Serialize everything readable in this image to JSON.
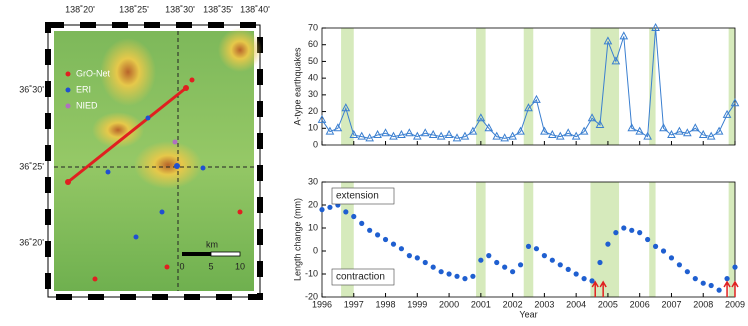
{
  "map": {
    "lon_labels": [
      "138˚20'",
      "138˚25'",
      "138˚30'",
      "138˚35'",
      "138˚40'"
    ],
    "lat_labels": [
      "36˚30'",
      "36˚25'",
      "36˚20'"
    ],
    "legend": [
      "GrO-Net",
      "ERI",
      "NIED"
    ],
    "scale_unit": "km",
    "scale_labels": [
      "0",
      "5",
      "10"
    ]
  },
  "chart_data": [
    {
      "type": "line",
      "ylabel": "A-type earthquakes",
      "color": "#3a7fd0",
      "band_color": "#cfe6b0",
      "shaded_periods": [
        [
          1996.6,
          1997.0
        ],
        [
          2000.85,
          2001.15
        ],
        [
          2002.35,
          2002.65
        ],
        [
          2004.45,
          2005.35
        ],
        [
          2006.3,
          2006.5
        ],
        [
          2008.8,
          2009.0
        ]
      ],
      "xlim": [
        1996,
        2009
      ],
      "xticks": [
        1996,
        1997,
        1998,
        1999,
        2000,
        2001,
        2002,
        2003,
        2004,
        2005,
        2006,
        2007,
        2008,
        2009
      ],
      "xtick_labels": false,
      "ylim": [
        0,
        70
      ],
      "yticks": [
        0,
        10,
        20,
        30,
        40,
        50,
        60,
        70
      ],
      "x": [
        1996,
        1996.25,
        1996.5,
        1996.75,
        1997,
        1997.25,
        1997.5,
        1997.75,
        1998,
        1998.25,
        1998.5,
        1998.75,
        1999,
        1999.25,
        1999.5,
        1999.75,
        2000,
        2000.25,
        2000.5,
        2000.75,
        2001,
        2001.25,
        2001.5,
        2001.75,
        2002,
        2002.25,
        2002.5,
        2002.75,
        2003,
        2003.25,
        2003.5,
        2003.75,
        2004,
        2004.25,
        2004.5,
        2004.75,
        2005,
        2005.25,
        2005.5,
        2005.75,
        2006,
        2006.25,
        2006.5,
        2006.75,
        2007,
        2007.25,
        2007.5,
        2007.75,
        2008,
        2008.25,
        2008.5,
        2008.75,
        2009
      ],
      "values": [
        15,
        8,
        10,
        22,
        6,
        5,
        4,
        6,
        7,
        5,
        6,
        7,
        5,
        7,
        6,
        5,
        6,
        4,
        5,
        8,
        16,
        10,
        5,
        4,
        5,
        8,
        22,
        27,
        8,
        6,
        5,
        7,
        5,
        8,
        16,
        12,
        62,
        50,
        65,
        10,
        8,
        5,
        70,
        10,
        6,
        8,
        7,
        10,
        6,
        5,
        8,
        18,
        25
      ]
    },
    {
      "type": "scatter",
      "ylabel": "Length change (mm)",
      "xlabel": "Year",
      "color": "#1f5fd0",
      "band_color": "#cfe6b0",
      "shaded_periods": [
        [
          1996.6,
          1997.0
        ],
        [
          2000.85,
          2001.15
        ],
        [
          2002.35,
          2002.65
        ],
        [
          2004.45,
          2005.35
        ],
        [
          2006.3,
          2006.5
        ],
        [
          2008.8,
          2009.0
        ]
      ],
      "annotations": [
        "extension",
        "contraction"
      ],
      "arrows_x": [
        2004.6,
        2004.85,
        2008.75,
        2009.0
      ],
      "arrow_color": "#e02020",
      "xlim": [
        1996,
        2009
      ],
      "xticks": [
        1996,
        1997,
        1998,
        1999,
        2000,
        2001,
        2002,
        2003,
        2004,
        2005,
        2006,
        2007,
        2008,
        2009
      ],
      "xtick_labels": true,
      "ylim": [
        -20,
        30
      ],
      "yticks": [
        -20,
        -10,
        0,
        10,
        20,
        30
      ],
      "x": [
        1996,
        1996.25,
        1996.5,
        1996.75,
        1997,
        1997.25,
        1997.5,
        1997.75,
        1998,
        1998.25,
        1998.5,
        1998.75,
        1999,
        1999.25,
        1999.5,
        1999.75,
        2000,
        2000.25,
        2000.5,
        2000.75,
        2001,
        2001.25,
        2001.5,
        2001.75,
        2002,
        2002.25,
        2002.5,
        2002.75,
        2003,
        2003.25,
        2003.5,
        2003.75,
        2004,
        2004.25,
        2004.5,
        2004.75,
        2005,
        2005.25,
        2005.5,
        2005.75,
        2006,
        2006.25,
        2006.5,
        2006.75,
        2007,
        2007.25,
        2007.5,
        2007.75,
        2008,
        2008.25,
        2008.5,
        2008.75,
        2009
      ],
      "values": [
        18,
        19,
        20,
        17,
        15,
        12,
        9,
        7,
        5,
        3,
        1,
        -2,
        -3,
        -5,
        -7,
        -9,
        -10,
        -11,
        -12,
        -11,
        -4,
        -2,
        -5,
        -7,
        -9,
        -6,
        2,
        1,
        -2,
        -4,
        -6,
        -8,
        -10,
        -12,
        -13,
        -5,
        3,
        8,
        10,
        9,
        8,
        5,
        2,
        0,
        -3,
        -6,
        -9,
        -12,
        -14,
        -15,
        -17,
        -12,
        -7
      ]
    }
  ]
}
